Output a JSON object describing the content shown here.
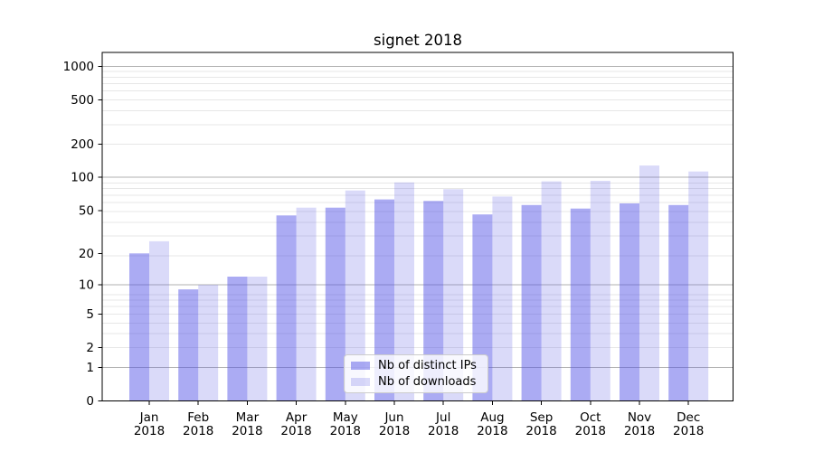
{
  "title": "signet 2018",
  "chart_data": {
    "type": "bar",
    "title": "signet 2018",
    "categories": [
      "Jan 2018",
      "Feb 2018",
      "Mar 2018",
      "Apr 2018",
      "May 2018",
      "Jun 2018",
      "Jul 2018",
      "Aug 2018",
      "Sep 2018",
      "Oct 2018",
      "Nov 2018",
      "Dec 2018"
    ],
    "series": [
      {
        "name": "Nb of distinct IPs",
        "color": "rgba(80,80,229,0.48)",
        "values": [
          20,
          9,
          12,
          45,
          53,
          63,
          61,
          46,
          56,
          52,
          58,
          56
        ]
      },
      {
        "name": "Nb of downloads",
        "color": "rgba(80,80,229,0.21)",
        "values": [
          26,
          10,
          12,
          53,
          76,
          90,
          78,
          67,
          92,
          93,
          128,
          113
        ]
      }
    ],
    "yscale": "log1p",
    "yticks": [
      0,
      1,
      2,
      5,
      10,
      20,
      50,
      100,
      200,
      500,
      1000
    ],
    "major_yticks": [
      1,
      10,
      100,
      1000
    ],
    "ylim": [
      0,
      1330
    ],
    "grid": true,
    "legend_position": "lower center"
  },
  "colors": {
    "grid_minor": "#e7e7e7",
    "grid_major": "#b2b2b2",
    "axis": "#000000",
    "text": "#000000"
  }
}
